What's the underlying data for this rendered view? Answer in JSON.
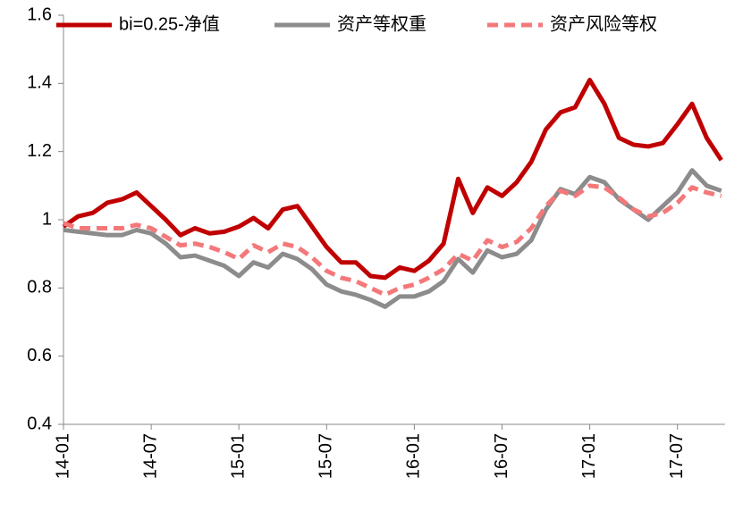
{
  "chart_data": {
    "type": "line",
    "categories": [
      "14-01",
      null,
      null,
      null,
      null,
      null,
      "14-07",
      null,
      null,
      null,
      null,
      null,
      "15-01",
      null,
      null,
      null,
      null,
      null,
      "15-07",
      null,
      null,
      null,
      null,
      null,
      "16-01",
      null,
      null,
      null,
      null,
      null,
      "16-07",
      null,
      null,
      null,
      null,
      null,
      "17-01",
      null,
      null,
      null,
      null,
      null,
      "17-07",
      null,
      null,
      null
    ],
    "series": [
      {
        "name": "bi=0.25-净值",
        "color": "#c00000",
        "dash": false,
        "values": [
          0.98,
          1.01,
          1.02,
          1.05,
          1.06,
          1.08,
          1.04,
          1.0,
          0.955,
          0.975,
          0.96,
          0.965,
          0.98,
          1.005,
          0.975,
          1.03,
          1.04,
          0.98,
          0.92,
          0.875,
          0.875,
          0.835,
          0.83,
          0.86,
          0.85,
          0.88,
          0.93,
          1.12,
          1.02,
          1.095,
          1.07,
          1.11,
          1.17,
          1.265,
          1.315,
          1.33,
          1.41,
          1.34,
          1.24,
          1.22,
          1.215,
          1.225,
          1.28,
          1.34,
          1.24,
          1.175
        ]
      },
      {
        "name": "资产等权重",
        "color": "#8c8c8c",
        "dash": false,
        "values": [
          0.97,
          0.965,
          0.96,
          0.955,
          0.955,
          0.97,
          0.96,
          0.93,
          0.89,
          0.895,
          0.88,
          0.865,
          0.835,
          0.875,
          0.86,
          0.9,
          0.885,
          0.855,
          0.81,
          0.79,
          0.78,
          0.765,
          0.745,
          0.775,
          0.775,
          0.79,
          0.82,
          0.885,
          0.845,
          0.91,
          0.89,
          0.9,
          0.94,
          1.03,
          1.09,
          1.075,
          1.125,
          1.11,
          1.06,
          1.03,
          1.0,
          1.04,
          1.08,
          1.145,
          1.1,
          1.085
        ]
      },
      {
        "name": "资产风险等权",
        "color": "#f4787a",
        "dash": true,
        "values": [
          0.99,
          0.975,
          0.975,
          0.975,
          0.975,
          0.985,
          0.975,
          0.95,
          0.925,
          0.93,
          0.92,
          0.905,
          0.885,
          0.925,
          0.905,
          0.93,
          0.92,
          0.89,
          0.85,
          0.83,
          0.82,
          0.8,
          0.78,
          0.8,
          0.81,
          0.83,
          0.855,
          0.9,
          0.88,
          0.94,
          0.92,
          0.935,
          0.975,
          1.04,
          1.085,
          1.07,
          1.1,
          1.095,
          1.065,
          1.03,
          1.01,
          1.02,
          1.05,
          1.095,
          1.08,
          1.07
        ]
      }
    ],
    "ylim": [
      0.4,
      1.6
    ],
    "yticks": [
      0.4,
      0.6,
      0.8,
      1,
      1.2,
      1.4,
      1.6
    ],
    "grid": false,
    "legend": "top"
  }
}
